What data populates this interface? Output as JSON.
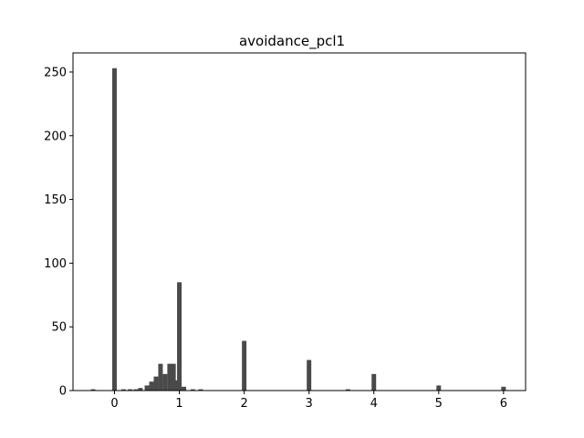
{
  "chart_data": {
    "type": "bar",
    "title": "avoidance_pcl1",
    "xlabel": "",
    "ylabel": "",
    "xlim": [
      -0.64,
      6.34
    ],
    "ylim": [
      0,
      265
    ],
    "xticks": [
      0,
      1,
      2,
      3,
      4,
      5,
      6
    ],
    "yticks": [
      0,
      50,
      100,
      150,
      200,
      250
    ],
    "bin_width": 0.07,
    "bar_color": "#4a4a4a",
    "grid": false,
    "bins": [
      {
        "x": -0.33,
        "value": 1
      },
      {
        "x": 0.0,
        "value": 253
      },
      {
        "x": 0.14,
        "value": 1
      },
      {
        "x": 0.24,
        "value": 1
      },
      {
        "x": 0.33,
        "value": 1
      },
      {
        "x": 0.4,
        "value": 2
      },
      {
        "x": 0.5,
        "value": 4
      },
      {
        "x": 0.57,
        "value": 7
      },
      {
        "x": 0.64,
        "value": 11
      },
      {
        "x": 0.71,
        "value": 21
      },
      {
        "x": 0.78,
        "value": 13
      },
      {
        "x": 0.85,
        "value": 21
      },
      {
        "x": 0.91,
        "value": 21
      },
      {
        "x": 0.96,
        "value": 8
      },
      {
        "x": 1.0,
        "value": 85
      },
      {
        "x": 1.07,
        "value": 3
      },
      {
        "x": 1.21,
        "value": 1
      },
      {
        "x": 1.33,
        "value": 1
      },
      {
        "x": 2.0,
        "value": 39
      },
      {
        "x": 3.0,
        "value": 24
      },
      {
        "x": 3.6,
        "value": 1
      },
      {
        "x": 4.0,
        "value": 13
      },
      {
        "x": 5.0,
        "value": 4
      },
      {
        "x": 6.0,
        "value": 3
      }
    ]
  }
}
